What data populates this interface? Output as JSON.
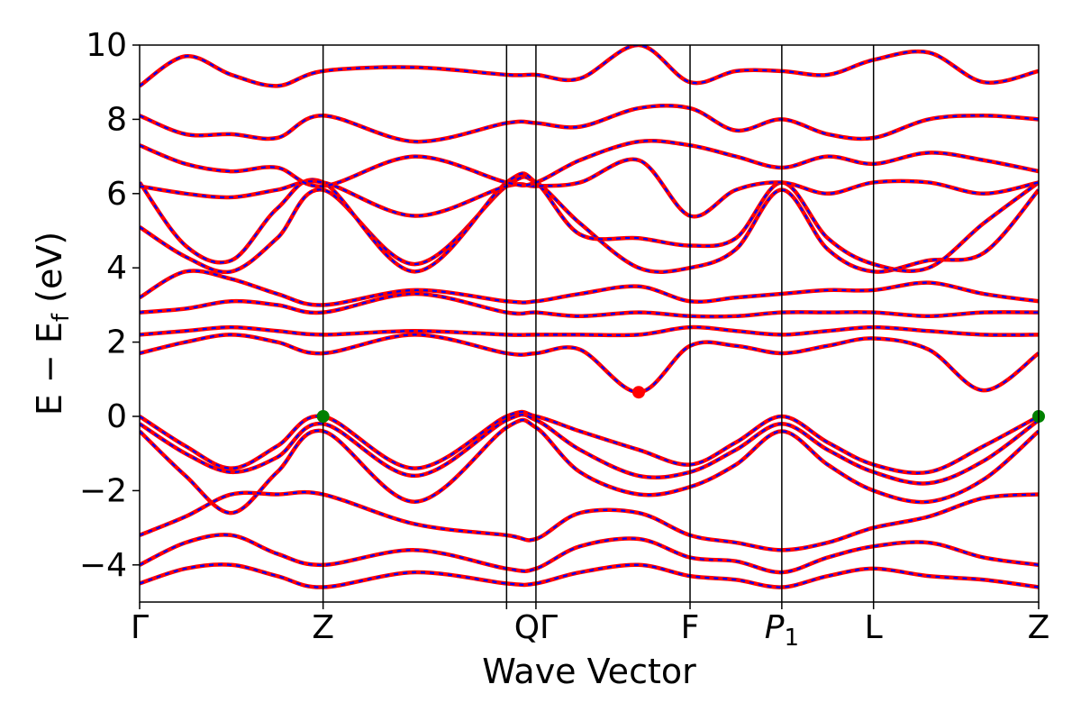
{
  "chart_data": {
    "type": "line",
    "title": "",
    "xlabel": "Wave Vector",
    "ylabel_parts": {
      "main": "E − E",
      "sub": "f",
      "unit": "(eV)"
    },
    "ylim": [
      -5,
      10
    ],
    "yticks": [
      {
        "value": -4,
        "label": "−4"
      },
      {
        "value": -2,
        "label": "−2"
      },
      {
        "value": 0,
        "label": "0"
      },
      {
        "value": 2,
        "label": "2"
      },
      {
        "value": 4,
        "label": "4"
      },
      {
        "value": 6,
        "label": "6"
      },
      {
        "value": 8,
        "label": "8"
      },
      {
        "value": 10,
        "label": "10"
      }
    ],
    "kpoints": [
      {
        "label": "Γ",
        "pos": 0.0
      },
      {
        "label": "Z",
        "pos": 1.0
      },
      {
        "label": "Q",
        "pos": 2.0
      },
      {
        "label": "Γ",
        "pos": 2.16
      },
      {
        "label": "F",
        "pos": 3.0
      },
      {
        "label": "P",
        "sub": "1",
        "pos": 3.5
      },
      {
        "label": "L",
        "pos": 4.0
      },
      {
        "label": "Z",
        "pos": 4.9
      }
    ],
    "kpoint_tick_labels": [
      "Γ",
      "Z",
      "QΓ",
      "F",
      "P1",
      "L",
      "Z"
    ],
    "series_styles": [
      {
        "role": "bands-solid",
        "color": "#ff0000"
      },
      {
        "role": "bands-dashed",
        "color": "#0000ff"
      }
    ],
    "markers": [
      {
        "role": "vbm",
        "x": 1.0,
        "y": 0.0,
        "color": "#008000"
      },
      {
        "role": "vbm",
        "x": 4.9,
        "y": 0.0,
        "color": "#008000"
      },
      {
        "role": "cbm",
        "x": 2.72,
        "y": 0.65,
        "color": "#ff0000"
      }
    ],
    "bands": [
      {
        "x": [
          0,
          0.25,
          0.5,
          0.75,
          1.0,
          1.5,
          2.0,
          2.16,
          2.4,
          2.72,
          3.0,
          3.25,
          3.5,
          3.75,
          4.0,
          4.3,
          4.6,
          4.9
        ],
        "y": [
          0,
          -0.8,
          -1.4,
          -0.8,
          0,
          -1.4,
          0,
          0,
          -0.4,
          -0.9,
          -1.3,
          -0.7,
          0,
          -0.7,
          -1.3,
          -1.5,
          -0.8,
          0
        ]
      },
      {
        "x": [
          0,
          0.25,
          0.5,
          0.75,
          1.0,
          1.5,
          2.0,
          2.16,
          2.4,
          2.72,
          3.0,
          3.25,
          3.5,
          3.75,
          4.0,
          4.3,
          4.6,
          4.9
        ],
        "y": [
          -0.2,
          -1.0,
          -1.5,
          -1.1,
          -0.2,
          -1.6,
          -0.1,
          -0.1,
          -0.9,
          -1.6,
          -1.5,
          -0.9,
          -0.2,
          -0.9,
          -1.5,
          -1.8,
          -1.2,
          -0.1
        ]
      },
      {
        "x": [
          0,
          0.25,
          0.5,
          0.75,
          1.0,
          1.5,
          2.0,
          2.16,
          2.4,
          2.72,
          3.0,
          3.25,
          3.5,
          3.75,
          4.0,
          4.3,
          4.6,
          4.9
        ],
        "y": [
          -0.4,
          -1.6,
          -2.6,
          -1.5,
          -0.4,
          -2.3,
          -0.3,
          -0.3,
          -1.5,
          -2.1,
          -1.9,
          -1.3,
          -0.4,
          -1.3,
          -2.0,
          -2.3,
          -1.7,
          -0.4
        ]
      },
      {
        "x": [
          0,
          0.25,
          0.5,
          0.75,
          1.0,
          1.5,
          2.0,
          2.16,
          2.4,
          2.72,
          3.0,
          3.25,
          3.5,
          3.75,
          4.0,
          4.3,
          4.6,
          4.9
        ],
        "y": [
          -3.2,
          -2.7,
          -2.1,
          -2.1,
          -2.1,
          -2.9,
          -3.2,
          -3.3,
          -2.6,
          -2.6,
          -3.2,
          -3.4,
          -3.6,
          -3.4,
          -3.0,
          -2.7,
          -2.2,
          -2.1
        ]
      },
      {
        "x": [
          0,
          0.25,
          0.5,
          0.75,
          1.0,
          1.5,
          2.0,
          2.16,
          2.4,
          2.72,
          3.0,
          3.25,
          3.5,
          3.75,
          4.0,
          4.3,
          4.6,
          4.9
        ],
        "y": [
          -4.0,
          -3.4,
          -3.2,
          -3.7,
          -4.0,
          -3.6,
          -4.1,
          -4.1,
          -3.5,
          -3.3,
          -3.8,
          -3.9,
          -4.2,
          -3.8,
          -3.5,
          -3.4,
          -3.8,
          -4.0
        ]
      },
      {
        "x": [
          0,
          0.25,
          0.5,
          0.75,
          1.0,
          1.5,
          2.0,
          2.16,
          2.4,
          2.72,
          3.0,
          3.25,
          3.5,
          3.75,
          4.0,
          4.3,
          4.6,
          4.9
        ],
        "y": [
          -4.5,
          -4.1,
          -4.0,
          -4.3,
          -4.6,
          -4.2,
          -4.5,
          -4.5,
          -4.2,
          -4.0,
          -4.3,
          -4.4,
          -4.6,
          -4.3,
          -4.1,
          -4.3,
          -4.4,
          -4.6
        ]
      },
      {
        "x": [
          0,
          0.25,
          0.5,
          0.75,
          1.0,
          1.5,
          2.0,
          2.16,
          2.4,
          2.72,
          3.0,
          3.25,
          3.5,
          3.75,
          4.0,
          4.3,
          4.6,
          4.9
        ],
        "y": [
          1.7,
          2.0,
          2.2,
          2.0,
          1.7,
          2.2,
          1.7,
          1.7,
          1.8,
          0.65,
          1.9,
          1.9,
          1.7,
          1.9,
          2.1,
          1.8,
          0.7,
          1.7
        ]
      },
      {
        "x": [
          0,
          0.25,
          0.5,
          0.75,
          1.0,
          1.5,
          2.0,
          2.16,
          2.4,
          2.72,
          3.0,
          3.25,
          3.5,
          3.75,
          4.0,
          4.3,
          4.6,
          4.9
        ],
        "y": [
          2.2,
          2.3,
          2.4,
          2.3,
          2.2,
          2.3,
          2.2,
          2.2,
          2.2,
          2.2,
          2.4,
          2.3,
          2.2,
          2.3,
          2.4,
          2.3,
          2.2,
          2.2
        ]
      },
      {
        "x": [
          0,
          0.25,
          0.5,
          0.75,
          1.0,
          1.5,
          2.0,
          2.16,
          2.4,
          2.72,
          3.0,
          3.25,
          3.5,
          3.75,
          4.0,
          4.3,
          4.6,
          4.9
        ],
        "y": [
          2.8,
          2.9,
          3.1,
          3.0,
          2.8,
          3.3,
          2.8,
          2.8,
          2.7,
          2.8,
          2.7,
          2.7,
          2.8,
          2.8,
          2.8,
          2.7,
          2.8,
          2.8
        ]
      },
      {
        "x": [
          0,
          0.25,
          0.5,
          0.75,
          1.0,
          1.5,
          2.0,
          2.16,
          2.4,
          2.72,
          3.0,
          3.25,
          3.5,
          3.75,
          4.0,
          4.3,
          4.6,
          4.9
        ],
        "y": [
          3.2,
          3.9,
          3.7,
          3.3,
          3.0,
          3.4,
          3.1,
          3.1,
          3.3,
          3.5,
          3.1,
          3.2,
          3.3,
          3.4,
          3.4,
          3.6,
          3.3,
          3.1
        ]
      },
      {
        "x": [
          0,
          0.25,
          0.5,
          0.75,
          1.0,
          1.5,
          2.0,
          2.16,
          2.4,
          2.72,
          3.0,
          3.25,
          3.5,
          3.75,
          4.0,
          4.3,
          4.6,
          4.9
        ],
        "y": [
          5.1,
          4.3,
          3.9,
          4.8,
          6.1,
          4.1,
          6.2,
          6.3,
          5.2,
          4.0,
          4.0,
          4.5,
          6.1,
          4.5,
          3.9,
          4.2,
          4.4,
          6.1
        ]
      },
      {
        "x": [
          0,
          0.25,
          0.5,
          0.75,
          1.0,
          1.5,
          2.0,
          2.16,
          2.4,
          2.72,
          3.0,
          3.25,
          3.5,
          3.75,
          4.0,
          4.3,
          4.6,
          4.9
        ],
        "y": [
          6.3,
          4.6,
          4.2,
          5.6,
          6.3,
          3.9,
          6.3,
          6.3,
          4.9,
          4.8,
          4.6,
          4.8,
          6.3,
          4.8,
          4.1,
          4.0,
          5.2,
          6.3
        ]
      },
      {
        "x": [
          0,
          0.25,
          0.5,
          0.75,
          1.0,
          1.5,
          2.0,
          2.16,
          2.4,
          2.72,
          3.0,
          3.25,
          3.5,
          3.75,
          4.0,
          4.3,
          4.6,
          4.9
        ],
        "y": [
          6.2,
          6.0,
          5.9,
          6.1,
          6.3,
          5.4,
          6.2,
          6.2,
          6.3,
          6.9,
          5.4,
          6.1,
          6.3,
          6.0,
          6.3,
          6.3,
          6.0,
          6.3
        ]
      },
      {
        "x": [
          0,
          0.25,
          0.5,
          0.75,
          1.0,
          1.5,
          2.0,
          2.16,
          2.4,
          2.72,
          3.0,
          3.25,
          3.5,
          3.75,
          4.0,
          4.3,
          4.6,
          4.9
        ],
        "y": [
          7.3,
          6.8,
          6.6,
          6.7,
          6.2,
          7.0,
          6.3,
          6.3,
          6.9,
          7.4,
          7.3,
          7.0,
          6.7,
          7.0,
          6.8,
          7.1,
          6.9,
          6.6
        ]
      },
      {
        "x": [
          0,
          0.25,
          0.5,
          0.75,
          1.0,
          1.5,
          2.0,
          2.16,
          2.4,
          2.72,
          3.0,
          3.25,
          3.5,
          3.75,
          4.0,
          4.3,
          4.6,
          4.9
        ],
        "y": [
          8.1,
          7.6,
          7.6,
          7.5,
          8.1,
          7.4,
          7.9,
          7.9,
          7.8,
          8.3,
          8.3,
          7.7,
          8.0,
          7.6,
          7.5,
          8.0,
          8.1,
          8.0
        ]
      },
      {
        "x": [
          0,
          0.25,
          0.5,
          0.75,
          1.0,
          1.5,
          2.0,
          2.16,
          2.4,
          2.72,
          3.0,
          3.25,
          3.5,
          3.75,
          4.0,
          4.3,
          4.6,
          4.9
        ],
        "y": [
          8.9,
          9.7,
          9.2,
          8.9,
          9.3,
          9.4,
          9.2,
          9.2,
          9.1,
          10.0,
          9.0,
          9.3,
          9.3,
          9.2,
          9.6,
          9.8,
          9.0,
          9.3
        ]
      }
    ]
  }
}
